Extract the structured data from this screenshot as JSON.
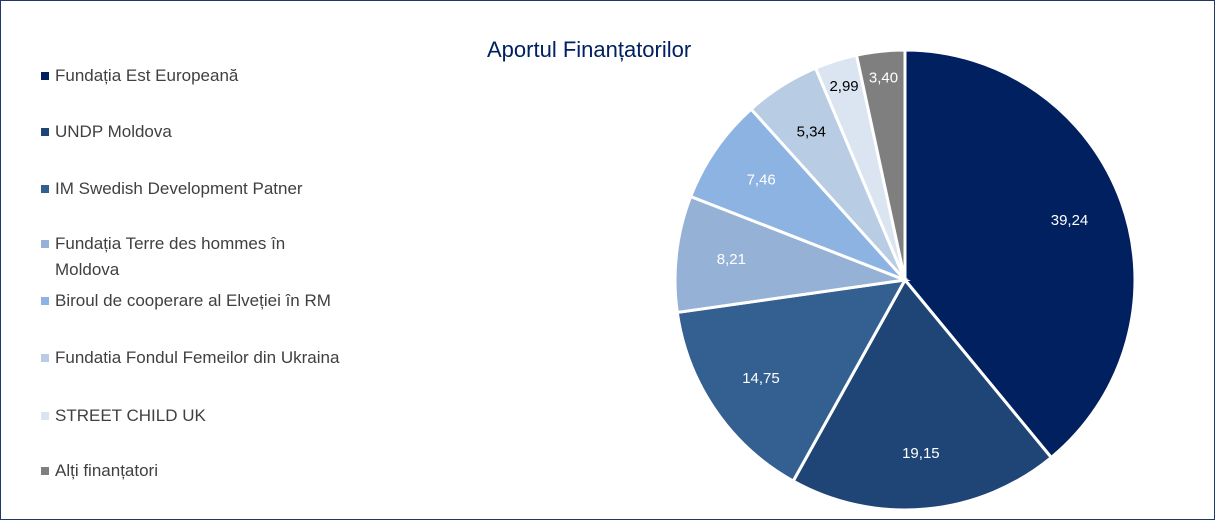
{
  "chart_data": {
    "type": "pie",
    "title": "Aportul Finanțatorilor",
    "categories": [
      "Fundația Est Europeană",
      "UNDP Moldova",
      "IM Swedish Development Patner",
      "Fundația Terre des hommes în Moldova",
      "Biroul de cooperare al Elveției în RM",
      "Fundatia Fondul Femeilor din Ukraina",
      "STREET CHILD UK",
      "Alți finanțatori"
    ],
    "values": [
      39.24,
      19.15,
      14.75,
      8.21,
      7.46,
      5.34,
      2.99,
      3.4
    ],
    "value_labels": [
      "39,24",
      "19,15",
      "14,75",
      "8,21",
      "7,46",
      "5,34",
      "2,99",
      "3,40"
    ],
    "colors": [
      "#002060",
      "#1f4577",
      "#335f91",
      "#95b1d6",
      "#8db3e2",
      "#b8cce4",
      "#dbe5f1",
      "#7f7f7f"
    ],
    "legend": "left"
  }
}
